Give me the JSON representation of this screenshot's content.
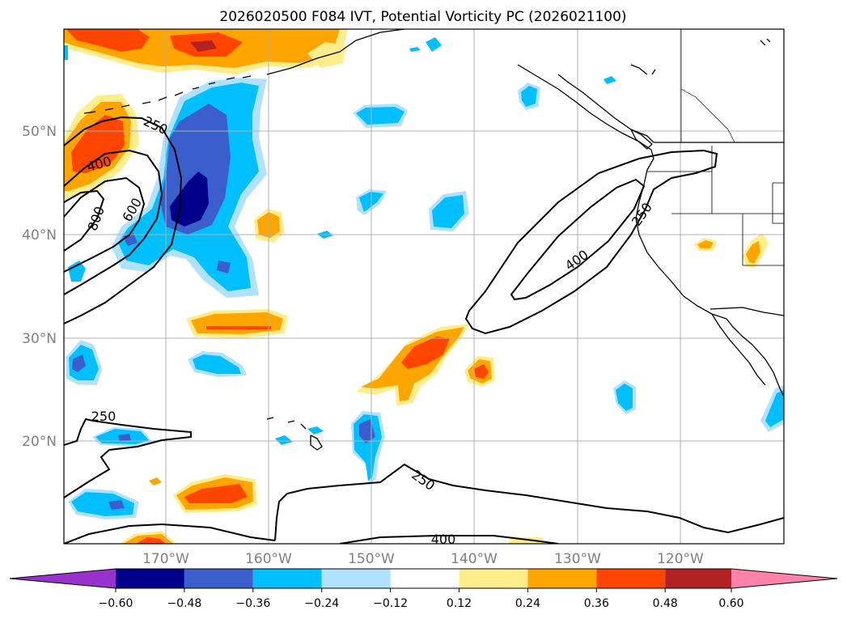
{
  "title": "2026020500 F084 IVT, Potential Vorticity PC (2026021100)",
  "lat_labels": [
    "50°N",
    "40°N",
    "30°N",
    "20°N"
  ],
  "lon_labels": [
    "170°W",
    "160°W",
    "150°W",
    "140°W",
    "130°W",
    "120°W"
  ],
  "contour_labels": [
    "250",
    "400",
    "600",
    "800",
    "400",
    "250",
    "250",
    "250",
    "400"
  ],
  "colorbar": {
    "ticks": [
      "−0.60",
      "−0.48",
      "−0.36",
      "−0.24",
      "−0.12",
      "0.12",
      "0.24",
      "0.36",
      "0.48",
      "0.60"
    ],
    "colors": [
      "#9932cc",
      "#00008b",
      "#3a5fcd",
      "#00bfff",
      "#b0e2ff",
      "#ffffff",
      "#ffec8b",
      "#ffa500",
      "#ff4500",
      "#b22222",
      "#ff82ab"
    ]
  },
  "colors": {
    "coast": "#000000",
    "grid": "#b0b0b0",
    "ivt_contour": "#000000"
  }
}
